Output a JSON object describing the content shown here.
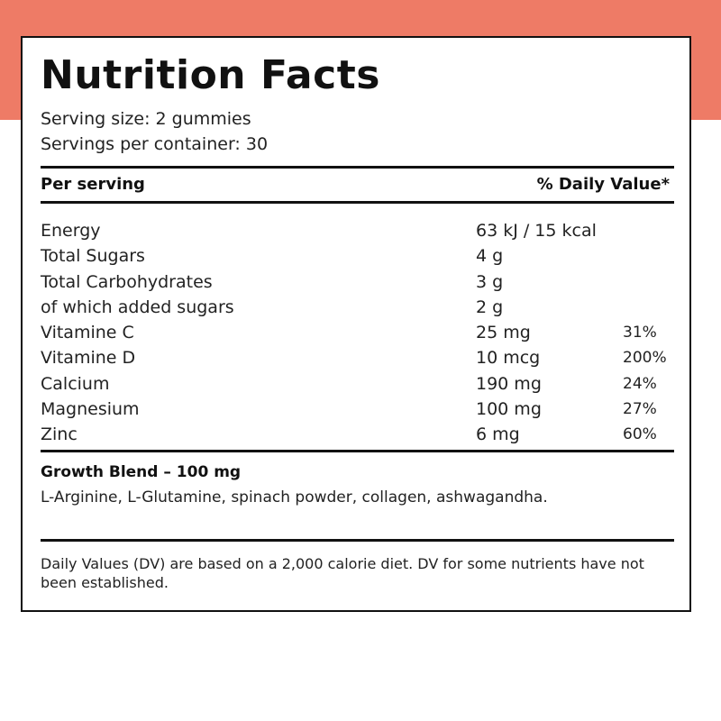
{
  "title": "Nutrition Facts",
  "serving_size": "Serving size: 2 gummies",
  "servings_per_container": "Servings per container: 30",
  "header": {
    "per_serving": "Per serving",
    "daily_value": "% Daily Value*"
  },
  "nutrients": [
    {
      "name": "Energy",
      "amount": "63 kJ / 15 kcal",
      "dv": ""
    },
    {
      "name": "Total Sugars",
      "amount": "4 g",
      "dv": ""
    },
    {
      "name": "Total Carbohydrates",
      "amount": "3 g",
      "dv": ""
    },
    {
      "name": "of which added sugars",
      "amount": "2 g",
      "dv": ""
    },
    {
      "name": "Vitamine C",
      "amount": "25 mg",
      "dv": "31%"
    },
    {
      "name": "Vitamine D",
      "amount": "10 mcg",
      "dv": "200%"
    },
    {
      "name": "Calcium",
      "amount": "190 mg",
      "dv": "24%"
    },
    {
      "name": "Magnesium",
      "amount": "100 mg",
      "dv": "27%"
    },
    {
      "name": "Zinc",
      "amount": "6 mg",
      "dv": "60%"
    }
  ],
  "blend": {
    "title": "Growth Blend – 100 mg",
    "ingredients": "L-Arginine, L-Glutamine, spinach powder, collagen, ashwagandha."
  },
  "footnote": "Daily Values (DV) are based on a 2,000 calorie diet. DV for some nutrients have not been established.",
  "colors": {
    "accent_band": "#ee7b66",
    "border": "#111111",
    "text": "#1a1a1a"
  }
}
